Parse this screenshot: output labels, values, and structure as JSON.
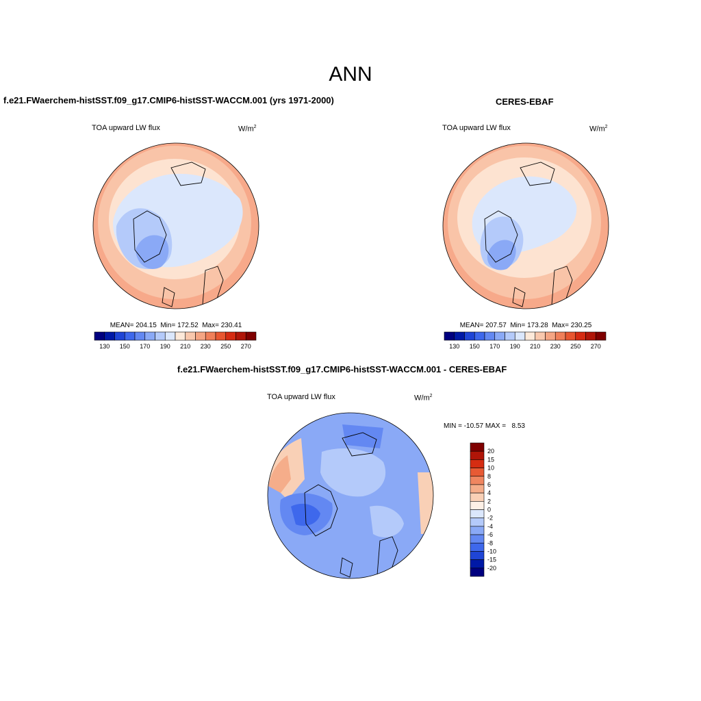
{
  "page_title": "ANN",
  "panels": [
    {
      "title": "f.e21.FWaerchem-histSST.f09_g17.CMIP6-histSST-WACCM.001 (yrs 1971-2000)",
      "variable": "TOA upward LW flux",
      "units": "W/m",
      "units_exp": "2",
      "stats": "MEAN= 204.15  Min= 172.52  Max= 230.41"
    },
    {
      "title": "CERES-EBAF",
      "variable": "TOA upward LW flux",
      "units": "W/m",
      "units_exp": "2",
      "stats": "MEAN= 207.57  Min= 173.28  Max= 230.25"
    },
    {
      "title": "f.e21.FWaerchem-histSST.f09_g17.CMIP6-histSST-WACCM.001 - CERES-EBAF",
      "variable": "TOA upward LW flux",
      "units": "W/m",
      "units_exp": "2",
      "stats": "MIN = -10.57 MAX =   8.53"
    }
  ],
  "colorbar_abs": {
    "colors": [
      "#00007f",
      "#0019a6",
      "#1f45d6",
      "#3e68ec",
      "#6388f2",
      "#8aa9f6",
      "#b4cafa",
      "#dbe7fc",
      "#fde9d9",
      "#f9c8ad",
      "#f5a583",
      "#f07f59",
      "#e85630",
      "#d52b12",
      "#b01508",
      "#7f0000"
    ],
    "tick_labels": [
      "130",
      "150",
      "170",
      "190",
      "210",
      "230",
      "250",
      "270"
    ]
  },
  "colorbar_diff": {
    "colors": [
      "#00007f",
      "#0019a6",
      "#1f45d6",
      "#3e68ec",
      "#6388f2",
      "#8aa9f6",
      "#b4cafa",
      "#dbe7fc",
      "#fdf0e6",
      "#f9d0b6",
      "#f5ad8a",
      "#f08660",
      "#e85a34",
      "#d52d12",
      "#b01508",
      "#7f0000"
    ],
    "tick_labels": [
      "20",
      "15",
      "10",
      "8",
      "6",
      "4",
      "2",
      "0",
      "-2",
      "-4",
      "-6",
      "-8",
      "-10",
      "-15",
      "-20"
    ]
  },
  "map_colors": {
    "ocean_warm_outer": "#f7a98a",
    "ocean_warm": "#f9c4a8",
    "ocean_cool": "#fde3d1",
    "arctic": "#dbe7fc",
    "cold_1": "#b4cafa",
    "cold_2": "#8aa9f6",
    "cold_3": "#6388f2",
    "diff_base": "#8aa9f6",
    "diff_light": "#b4cafa",
    "diff_dark": "#6388f2",
    "diff_darker": "#3e68ec",
    "diff_pos": "#f9d0b6",
    "diff_pos2": "#f5ad8a"
  }
}
